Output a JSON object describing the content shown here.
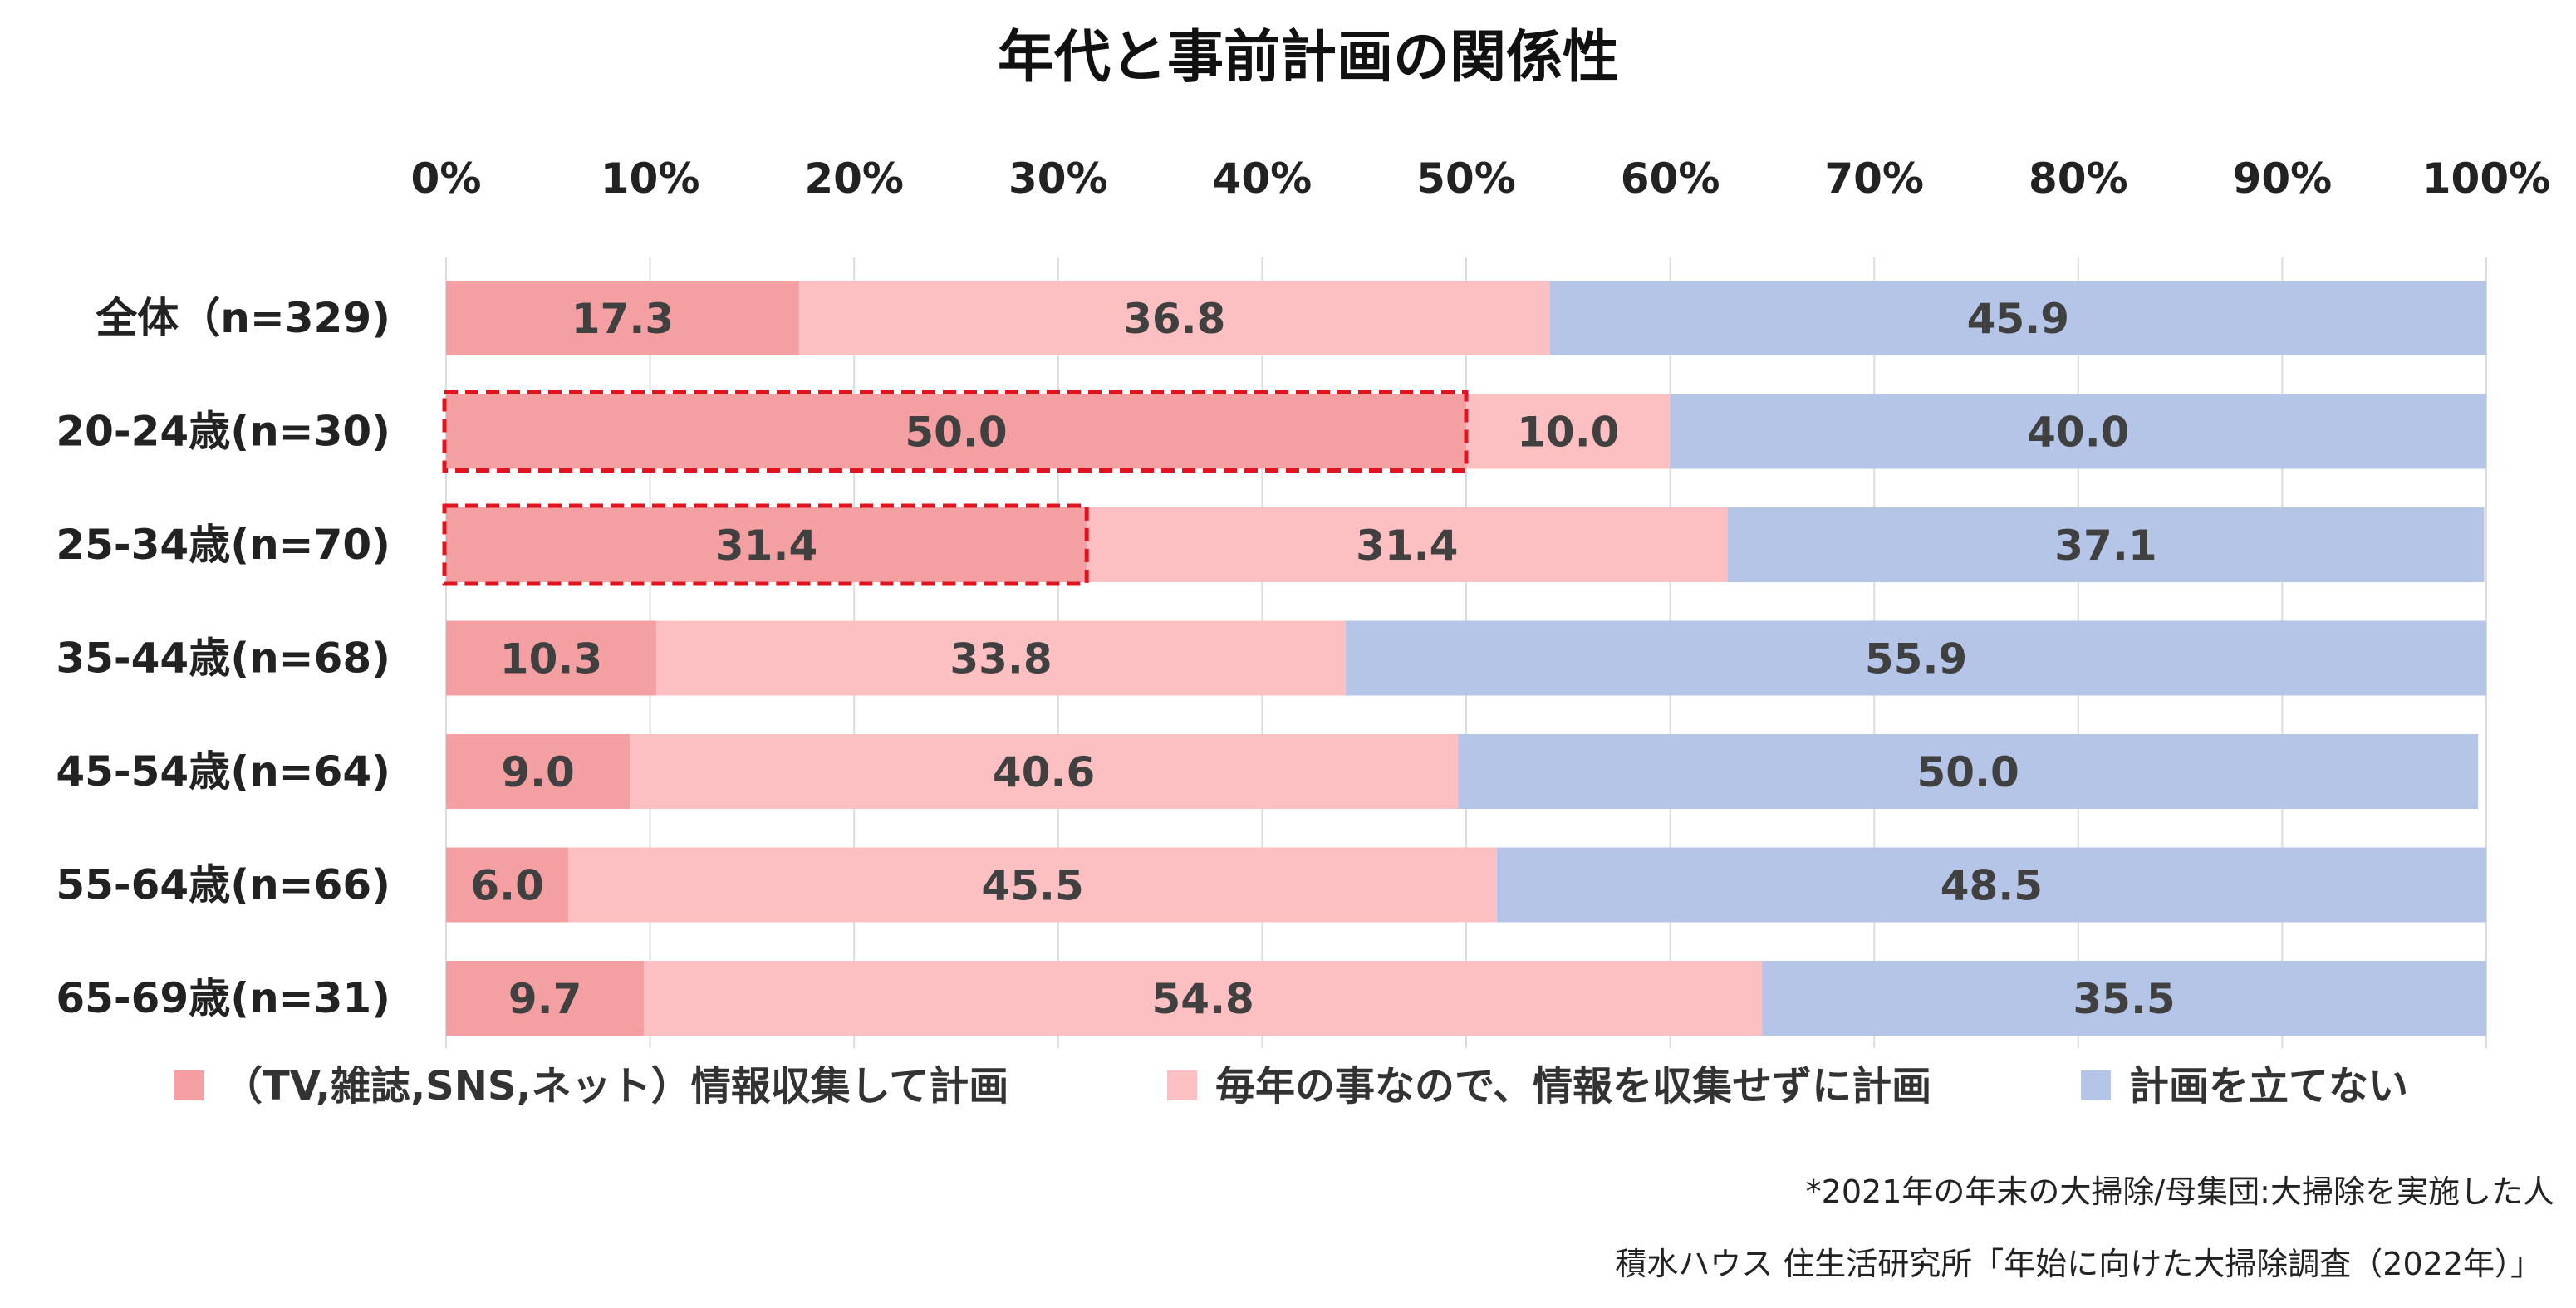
{
  "chart_data": {
    "type": "bar",
    "orientation": "horizontal",
    "stacked": true,
    "title": "年代と事前計画の関係性",
    "xlim": [
      0,
      100
    ],
    "x_ticks": [
      "0%",
      "10%",
      "20%",
      "30%",
      "40%",
      "50%",
      "60%",
      "70%",
      "80%",
      "90%",
      "100%"
    ],
    "categories": [
      "全体（n=329)",
      "20-24歳(n=30)",
      "25-34歳(n=70)",
      "35-44歳(n=68)",
      "45-54歳(n=64)",
      "55-64歳(n=66)",
      "65-69歳(n=31)"
    ],
    "series": [
      {
        "name": "（TV,雑誌,SNS,ネット）情報収集して計画",
        "color": "#f4a0a2",
        "values": [
          17.3,
          50.0,
          31.4,
          10.3,
          9.0,
          6.0,
          9.7
        ],
        "labels": [
          "17.3",
          "50.0",
          "31.4",
          "10.3",
          "9.0",
          "6.0",
          "9.7"
        ]
      },
      {
        "name": "毎年の事なので、情報を収集せずに計画",
        "color": "#fdc0c2",
        "values": [
          36.8,
          10.0,
          31.4,
          33.8,
          40.6,
          45.5,
          54.8
        ],
        "labels": [
          "36.8",
          "10.0",
          "31.4",
          "33.8",
          "40.6",
          "45.5",
          "54.8"
        ]
      },
      {
        "name": "計画を立てない",
        "color": "#b4c5e7",
        "values": [
          45.9,
          40.0,
          37.1,
          55.9,
          50.0,
          48.5,
          35.5
        ],
        "labels": [
          "45.9",
          "40.0",
          "37.1",
          "55.9",
          "50.0",
          "48.5",
          "35.5"
        ]
      }
    ],
    "highlighted": [
      {
        "category_index": 1,
        "series_index": 0,
        "color": "#e0141e"
      },
      {
        "category_index": 2,
        "series_index": 0,
        "color": "#e0141e"
      }
    ],
    "grid": true,
    "legend_position": "bottom",
    "notes": [
      "*2021年の年末の大掃除/母集団:大掃除を実施した人",
      "積水ハウス 住生活研究所「年始に向けた大掃除調査（2022年）」"
    ]
  }
}
